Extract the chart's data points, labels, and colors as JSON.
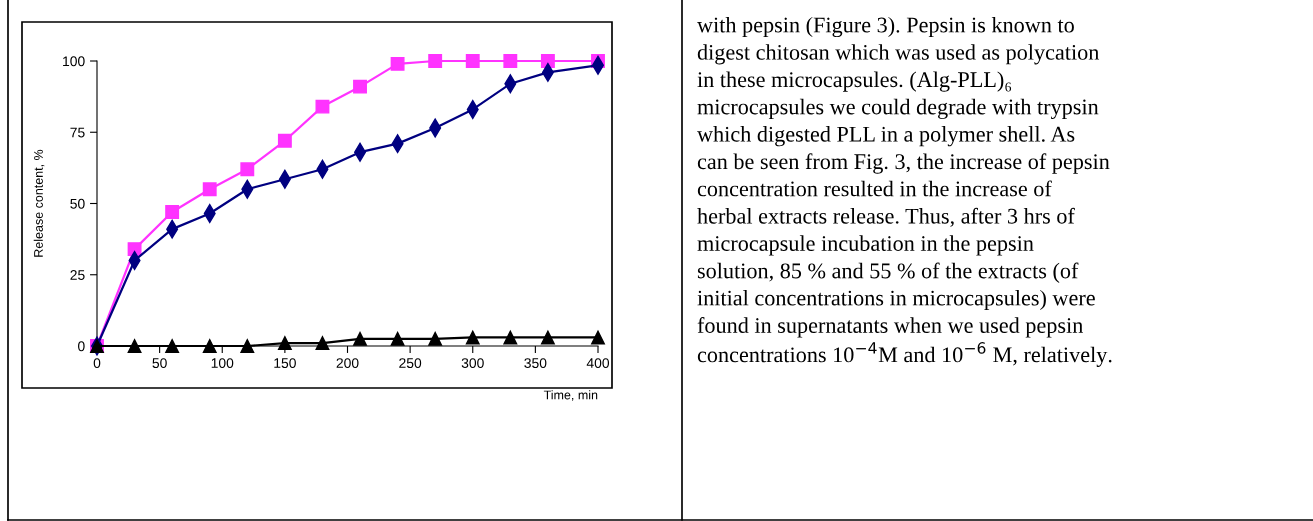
{
  "chart_data": {
    "type": "line",
    "xlabel": "Time, min",
    "ylabel": "Release content, %",
    "x": [
      0,
      30,
      60,
      90,
      120,
      150,
      180,
      210,
      240,
      270,
      300,
      330,
      360,
      400
    ],
    "xlim": [
      0,
      400
    ],
    "xticks": [
      0,
      50,
      100,
      150,
      200,
      250,
      300,
      350,
      400
    ],
    "ylim": [
      0,
      100
    ],
    "yticks": [
      0,
      25,
      50,
      75,
      100
    ],
    "grid": false,
    "legend": false,
    "series": [
      {
        "color": "#ff33ff",
        "marker": "square",
        "values": [
          0,
          34,
          47,
          55,
          62,
          72,
          84,
          91,
          99,
          100,
          100,
          100,
          100,
          100
        ]
      },
      {
        "color": "#000080",
        "marker": "diamond",
        "values": [
          0,
          30,
          41,
          46.5,
          55,
          58.5,
          62,
          68,
          71,
          76.5,
          83,
          92,
          96,
          98.5
        ]
      },
      {
        "color": "#000000",
        "marker": "triangle",
        "values": [
          0,
          0,
          0,
          0,
          0,
          1,
          1,
          2.5,
          2.5,
          2.5,
          3,
          3,
          3,
          3
        ]
      }
    ],
    "annotations": [
      "with pepsin (Figure 3). Pepsin is known to",
      "digest chitosan which was used as polycation",
      "in these microcapsules. (Alg-PLL)₆",
      "microcapsules we could degrade with trypsin",
      "which digested PLL in a polymer shell. As",
      "can be seen from Fig. 3, the increase of pepsin",
      "concentration resulted in the increase of",
      "herbal extracts release. Thus, after 3 hrs of",
      "microcapsule incubation in the pepsin",
      "solution, 85 % and 55 % of the extracts (of",
      "initial concentrations in microcapsules) were",
      "found in supernatants when we used pepsin",
      "concentrations 10$^{−4}$M and 10$^{−6}$ M, relatively."
    ]
  }
}
